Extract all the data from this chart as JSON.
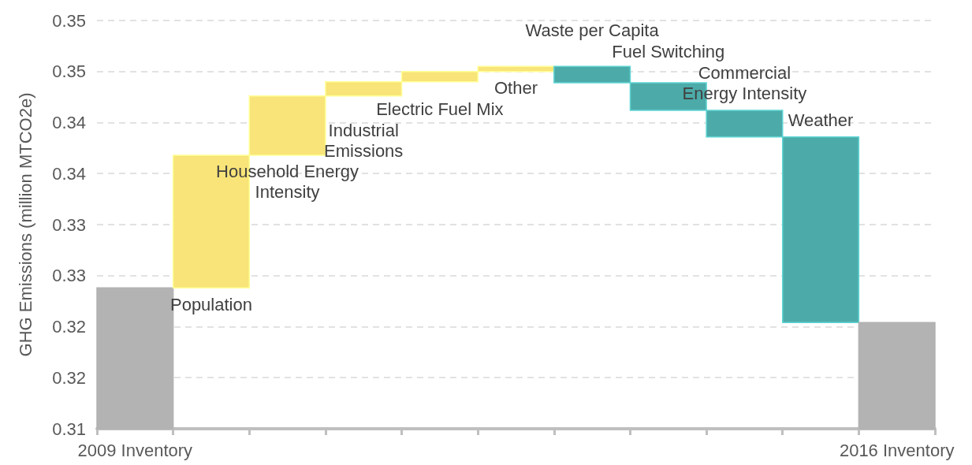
{
  "chart_data": {
    "type": "bar",
    "ylabel": "GHG Emissions (million MTCO2e)",
    "categories": [
      "2009 Inventory",
      "Population",
      "Household Energy\nIntensity",
      "Industrial\nEmissions",
      "Electric Fuel Mix",
      "Other",
      "Waste per Capita",
      "Fuel Switching",
      "Commercial\nEnergy Intensity",
      "Weather",
      "2016 Inventory"
    ],
    "base": [
      0.31,
      0.3238,
      0.3368,
      0.3426,
      0.344,
      0.345,
      0.3455,
      0.3439,
      0.3412,
      0.3386,
      0.31
    ],
    "values": [
      0.0138,
      0.013,
      0.0058,
      0.0014,
      0.001,
      0.0005,
      -0.0016,
      -0.0027,
      -0.0026,
      -0.0182,
      0.0104
    ],
    "colors": [
      "#b3b3b3",
      "#f8e478",
      "#f8e478",
      "#f8e478",
      "#f8e478",
      "#f8e478",
      "#4caba9",
      "#4caba9",
      "#4caba9",
      "#4caba9",
      "#b3b3b3"
    ],
    "ylim": [
      0.31,
      0.35
    ],
    "yticks": [
      0.31,
      {
        "value": 0.315,
        "label": "0.32"
      },
      0.32,
      {
        "value": 0.325,
        "label": "0.33"
      },
      0.33,
      {
        "value": 0.335,
        "label": "0.34"
      },
      0.34,
      {
        "value": 0.345,
        "label": "0.35"
      },
      0.35
    ],
    "grid": "y"
  }
}
